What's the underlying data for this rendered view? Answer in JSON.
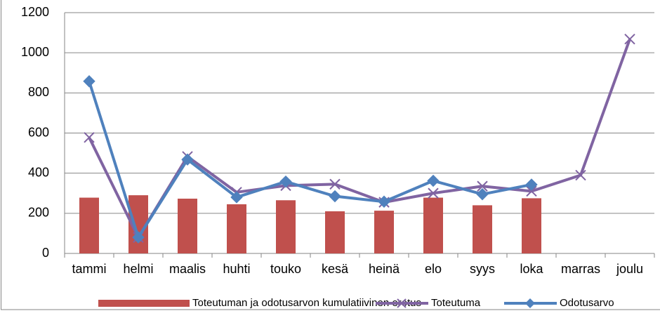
{
  "chart_data": {
    "type": "combo",
    "categories": [
      "tammi",
      "helmi",
      "maalis",
      "huhti",
      "touko",
      "kesä",
      "heinä",
      "elo",
      "syys",
      "loka",
      "marras",
      "joulu"
    ],
    "series": [
      {
        "name": "Toteutuman ja odotusarvon kumulatiivinen erotus",
        "type": "bar",
        "color": "#c0504d",
        "values": [
          278,
          290,
          273,
          245,
          265,
          210,
          213,
          278,
          240,
          275,
          null,
          null
        ]
      },
      {
        "name": "Toteutuma",
        "type": "line",
        "marker": "x",
        "color": "#8064a2",
        "values": [
          578,
          80,
          483,
          305,
          338,
          345,
          255,
          300,
          335,
          310,
          390,
          1068
        ]
      },
      {
        "name": "Odotusarvo",
        "type": "line",
        "marker": "diamond",
        "color": "#4f81bd",
        "values": [
          858,
          80,
          468,
          280,
          358,
          285,
          258,
          362,
          295,
          343,
          null,
          null
        ]
      }
    ],
    "ylim": [
      0,
      1200
    ],
    "yticks": [
      0,
      200,
      400,
      600,
      800,
      1000,
      1200
    ],
    "grid": true,
    "legend": "bottom"
  }
}
